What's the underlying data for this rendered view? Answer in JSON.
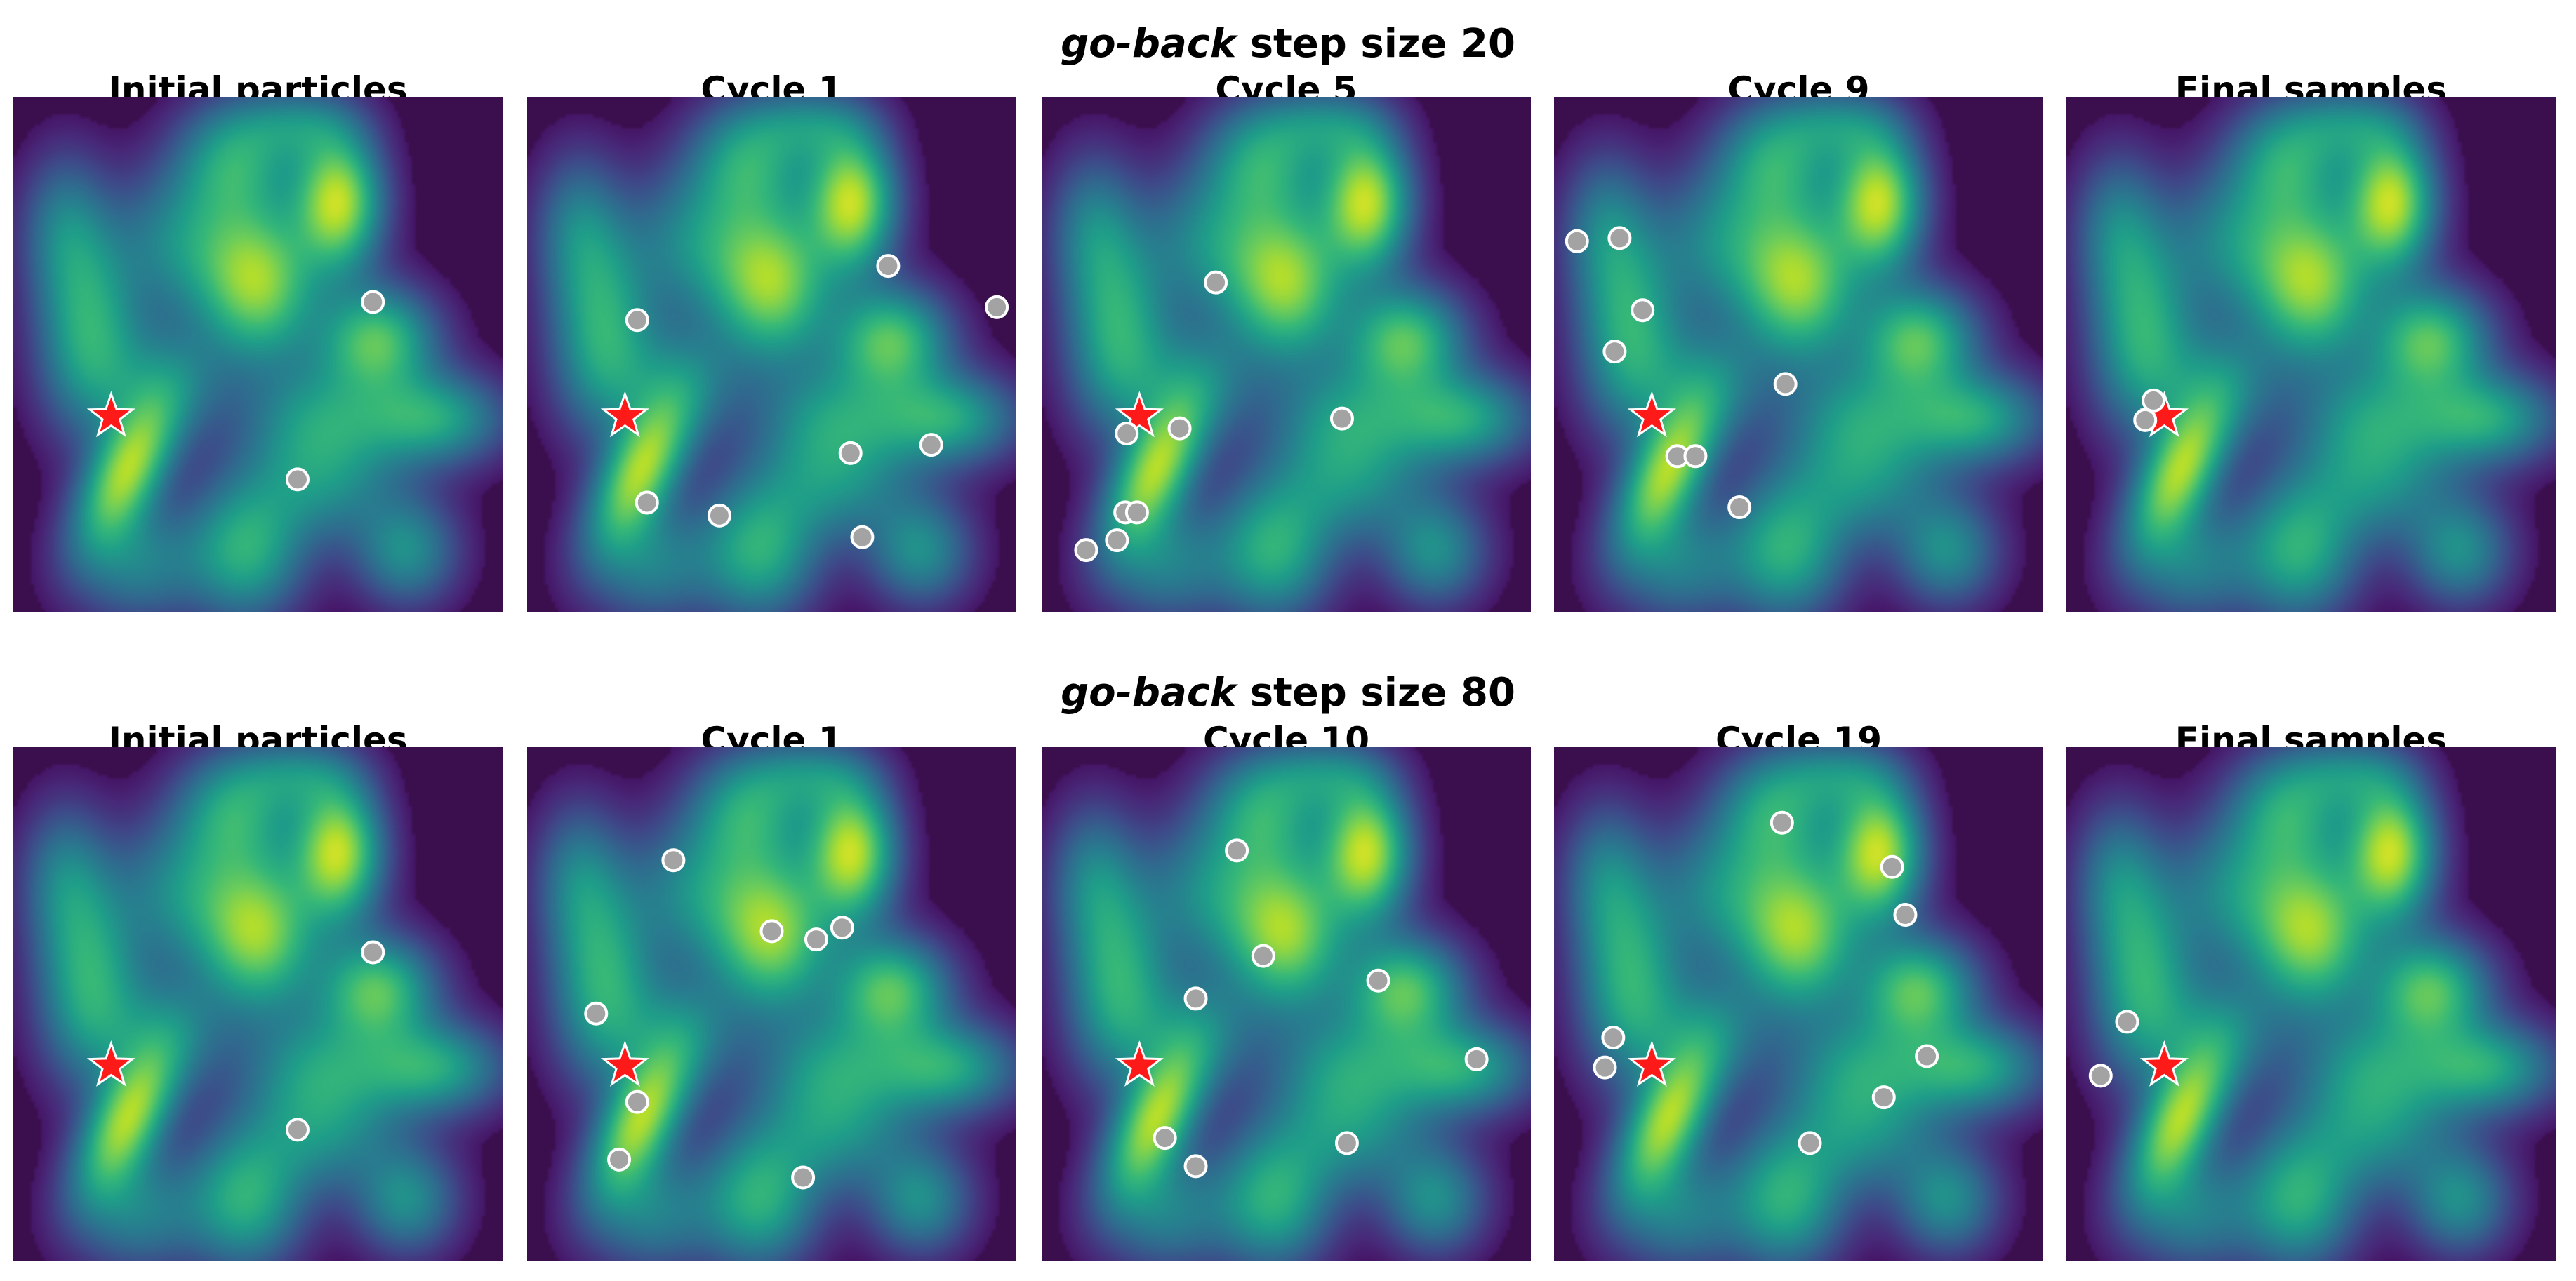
{
  "chart_data": [
    {
      "type": "scatter",
      "row_title": {
        "italic": "go-back",
        "rest": " step size 20"
      },
      "x_range": [
        0,
        100
      ],
      "y_range": [
        0,
        100
      ],
      "target_star": {
        "x": 20,
        "y": 38
      },
      "panels": [
        {
          "title": "Initial particles",
          "points": [
            [
              73.5,
              60.2
            ],
            [
              58.1,
              25.8
            ]
          ]
        },
        {
          "title": "Cycle 1",
          "points": [
            [
              73.8,
              67.2
            ],
            [
              96.0,
              59.2
            ],
            [
              22.5,
              56.7
            ],
            [
              66.1,
              30.9
            ],
            [
              82.6,
              32.5
            ],
            [
              24.5,
              21.3
            ],
            [
              39.3,
              18.8
            ],
            [
              68.5,
              14.6
            ]
          ]
        },
        {
          "title": "Cycle 5",
          "points": [
            [
              35.6,
              64.0
            ],
            [
              61.4,
              37.6
            ],
            [
              28.2,
              35.7
            ],
            [
              17.4,
              34.7
            ],
            [
              17.1,
              19.4
            ],
            [
              19.5,
              19.4
            ],
            [
              15.4,
              14.0
            ],
            [
              9.1,
              12.1
            ]
          ]
        },
        {
          "title": "Cycle 9",
          "points": [
            [
              4.7,
              72.0
            ],
            [
              13.4,
              72.6
            ],
            [
              18.1,
              58.6
            ],
            [
              12.4,
              50.6
            ],
            [
              47.3,
              44.3
            ],
            [
              25.2,
              30.3
            ],
            [
              28.9,
              30.3
            ],
            [
              37.9,
              20.4
            ]
          ]
        },
        {
          "title": "Final samples",
          "points": [
            [
              17.8,
              41.1
            ],
            [
              16.1,
              37.3
            ]
          ]
        }
      ]
    },
    {
      "type": "scatter",
      "row_title": {
        "italic": "go-back",
        "rest": " step size 80"
      },
      "x_range": [
        0,
        100
      ],
      "y_range": [
        0,
        100
      ],
      "target_star": {
        "x": 20,
        "y": 38
      },
      "panels": [
        {
          "title": "Initial particles",
          "points": [
            [
              73.5,
              60.1
            ],
            [
              58.1,
              25.6
            ]
          ]
        },
        {
          "title": "Cycle 1",
          "points": [
            [
              29.9,
              78.0
            ],
            [
              50.0,
              64.2
            ],
            [
              59.1,
              62.6
            ],
            [
              64.4,
              64.9
            ],
            [
              14.1,
              48.2
            ],
            [
              22.5,
              31.0
            ],
            [
              18.8,
              19.8
            ],
            [
              56.4,
              16.3
            ]
          ]
        },
        {
          "title": "Cycle 10",
          "points": [
            [
              39.9,
              79.9
            ],
            [
              45.3,
              59.4
            ],
            [
              68.8,
              54.6
            ],
            [
              31.5,
              51.1
            ],
            [
              88.9,
              39.3
            ],
            [
              25.2,
              24.0
            ],
            [
              31.5,
              18.5
            ],
            [
              62.4,
              23.0
            ]
          ]
        },
        {
          "title": "Cycle 19",
          "points": [
            [
              46.6,
              85.3
            ],
            [
              69.1,
              76.7
            ],
            [
              71.8,
              67.4
            ],
            [
              12.1,
              43.5
            ],
            [
              10.4,
              37.7
            ],
            [
              76.2,
              39.9
            ],
            [
              67.4,
              31.9
            ],
            [
              52.3,
              23.0
            ]
          ]
        },
        {
          "title": "Final samples",
          "points": [
            [
              12.4,
              46.6
            ],
            [
              7.0,
              36.1
            ]
          ]
        }
      ]
    }
  ],
  "colors": {
    "particle": "#a3a3a3",
    "particle_edge": "#ffffff",
    "star": "#ff1a1a",
    "star_edge": "#ffffff",
    "background": "#3b0f4e"
  }
}
